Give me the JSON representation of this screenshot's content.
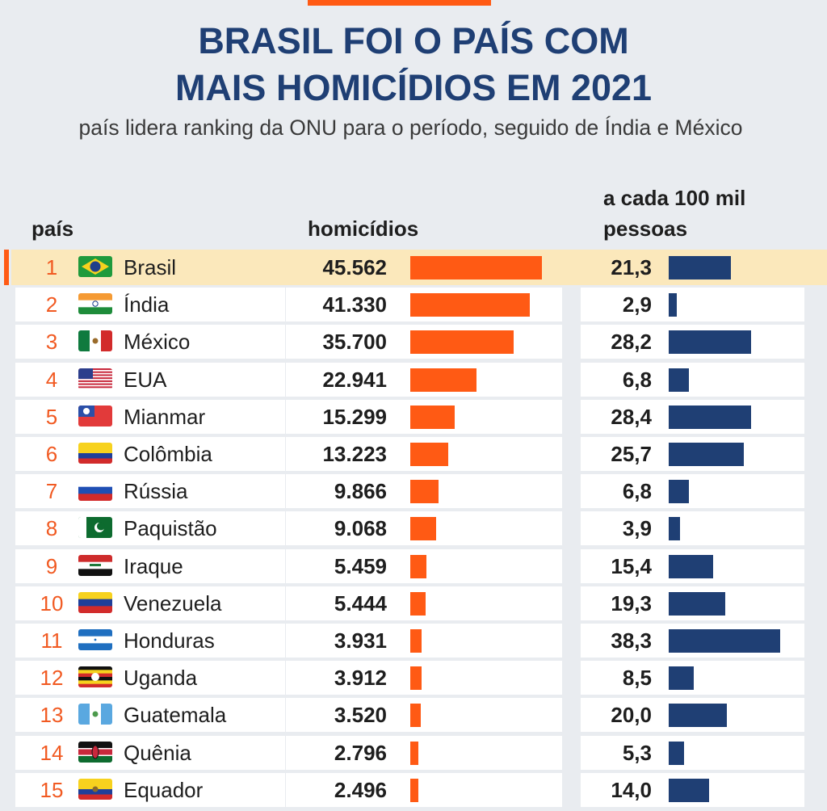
{
  "title_line1": "BRASIL FOI O PAÍS COM",
  "title_line2": "MAIS HOMICÍDIOS EM 2021",
  "subtitle": "país lidera ranking da ONU para o período, seguido de Índia e México",
  "headers": {
    "country": "país",
    "homicides": "homicídios",
    "rate_line1": "a cada 100 mil",
    "rate_line2": "pessoas"
  },
  "colors": {
    "title": "#1f3f74",
    "homicide_bar": "#ff5a14",
    "rate_bar": "#1f3f74",
    "rank": "#f15a22",
    "highlight": "#fbe8bb"
  },
  "chart_data": {
    "type": "bar",
    "title": "BRASIL FOI O PAÍS COM MAIS HOMICÍDIOS EM 2021",
    "subtitle": "país lidera ranking da ONU para o período, seguido de Índia e México",
    "highlighted": "Brasil",
    "rows": [
      {
        "rank": "1",
        "country": "Brasil",
        "flag": "brazil-flag-icon",
        "homicides": 45562,
        "homicides_label": "45.562",
        "rate": 21.3,
        "rate_label": "21,3"
      },
      {
        "rank": "2",
        "country": "Índia",
        "flag": "india-flag-icon",
        "homicides": 41330,
        "homicides_label": "41.330",
        "rate": 2.9,
        "rate_label": "2,9"
      },
      {
        "rank": "3",
        "country": "México",
        "flag": "mexico-flag-icon",
        "homicides": 35700,
        "homicides_label": "35.700",
        "rate": 28.2,
        "rate_label": "28,2"
      },
      {
        "rank": "4",
        "country": "EUA",
        "flag": "usa-flag-icon",
        "homicides": 22941,
        "homicides_label": "22.941",
        "rate": 6.8,
        "rate_label": "6,8"
      },
      {
        "rank": "5",
        "country": "Mianmar",
        "flag": "myanmar-flag-icon",
        "homicides": 15299,
        "homicides_label": "15.299",
        "rate": 28.4,
        "rate_label": "28,4"
      },
      {
        "rank": "6",
        "country": "Colômbia",
        "flag": "colombia-flag-icon",
        "homicides": 13223,
        "homicides_label": "13.223",
        "rate": 25.7,
        "rate_label": "25,7"
      },
      {
        "rank": "7",
        "country": "Rússia",
        "flag": "russia-flag-icon",
        "homicides": 9866,
        "homicides_label": "9.866",
        "rate": 6.8,
        "rate_label": "6,8"
      },
      {
        "rank": "8",
        "country": "Paquistão",
        "flag": "pakistan-flag-icon",
        "homicides": 9068,
        "homicides_label": "9.068",
        "rate": 3.9,
        "rate_label": "3,9"
      },
      {
        "rank": "9",
        "country": "Iraque",
        "flag": "iraq-flag-icon",
        "homicides": 5459,
        "homicides_label": "5.459",
        "rate": 15.4,
        "rate_label": "15,4"
      },
      {
        "rank": "10",
        "country": "Venezuela",
        "flag": "venezuela-flag-icon",
        "homicides": 5444,
        "homicides_label": "5.444",
        "rate": 19.3,
        "rate_label": "19,3"
      },
      {
        "rank": "11",
        "country": "Honduras",
        "flag": "honduras-flag-icon",
        "homicides": 3931,
        "homicides_label": "3.931",
        "rate": 38.3,
        "rate_label": "38,3"
      },
      {
        "rank": "12",
        "country": "Uganda",
        "flag": "uganda-flag-icon",
        "homicides": 3912,
        "homicides_label": "3.912",
        "rate": 8.5,
        "rate_label": "8,5"
      },
      {
        "rank": "13",
        "country": "Guatemala",
        "flag": "guatemala-flag-icon",
        "homicides": 3520,
        "homicides_label": "3.520",
        "rate": 20.0,
        "rate_label": "20,0"
      },
      {
        "rank": "14",
        "country": "Quênia",
        "flag": "kenya-flag-icon",
        "homicides": 2796,
        "homicides_label": "2.796",
        "rate": 5.3,
        "rate_label": "5,3"
      },
      {
        "rank": "15",
        "country": "Equador",
        "flag": "ecuador-flag-icon",
        "homicides": 2496,
        "homicides_label": "2.496",
        "rate": 14.0,
        "rate_label": "14,0"
      }
    ]
  }
}
